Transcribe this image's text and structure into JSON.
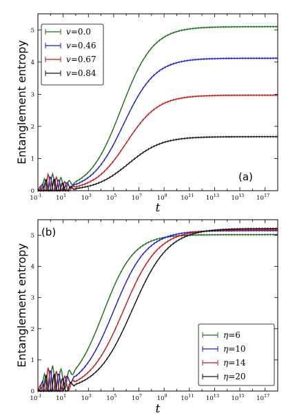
{
  "chart_data": [
    {
      "type": "line",
      "panel_label": "(a)",
      "xlabel": "t",
      "ylabel": "Entanglement entropy",
      "xscale": "log",
      "xlim": [
        0.1,
        1e+18
      ],
      "ylim": [
        0,
        5.5
      ],
      "xticks": [
        {
          "base": "10",
          "exp": "-1"
        },
        {
          "base": "10",
          "exp": "1"
        },
        {
          "base": "10",
          "exp": "3"
        },
        {
          "base": "10",
          "exp": "5"
        },
        {
          "base": "10",
          "exp": "7"
        },
        {
          "base": "10",
          "exp": "9"
        },
        {
          "base": "10",
          "exp": "11"
        },
        {
          "base": "10",
          "exp": "13"
        },
        {
          "base": "10",
          "exp": "15"
        },
        {
          "base": "10",
          "exp": "17"
        }
      ],
      "yticks": [
        "0",
        "1",
        "2",
        "3",
        "4",
        "5"
      ],
      "legend_position": "top-left",
      "series": [
        {
          "name": "v=0.0",
          "color": "#1a6e1a",
          "saturation": 5.1,
          "t_half": 400000.0,
          "width": 2.3
        },
        {
          "name": "v=0.46",
          "color": "#1a1ad6",
          "saturation": 4.12,
          "t_half": 600000.0,
          "width": 2.3
        },
        {
          "name": "v=0.67",
          "color": "#c81414",
          "saturation": 2.97,
          "t_half": 1000000.0,
          "width": 2.3
        },
        {
          "name": "v=0.84",
          "color": "#111111",
          "saturation": 1.68,
          "t_half": 1500000.0,
          "width": 2.4
        }
      ]
    },
    {
      "type": "line",
      "panel_label": "(b)",
      "xlabel": "t",
      "ylabel": "Entanglement entropy",
      "xscale": "log",
      "xlim": [
        0.1,
        1e+18
      ],
      "ylim": [
        0,
        5.5
      ],
      "xticks": [
        {
          "base": "10",
          "exp": "-1"
        },
        {
          "base": "10",
          "exp": "1"
        },
        {
          "base": "10",
          "exp": "3"
        },
        {
          "base": "10",
          "exp": "5"
        },
        {
          "base": "10",
          "exp": "7"
        },
        {
          "base": "10",
          "exp": "9"
        },
        {
          "base": "10",
          "exp": "11"
        },
        {
          "base": "10",
          "exp": "13"
        },
        {
          "base": "10",
          "exp": "15"
        },
        {
          "base": "10",
          "exp": "17"
        }
      ],
      "yticks": [
        "0",
        "1",
        "2",
        "3",
        "4",
        "5"
      ],
      "legend_position": "bottom-right",
      "series": [
        {
          "name": "η=6",
          "color": "#1a6e1a",
          "saturation": 5.02,
          "t_half": 15000.0,
          "width": 2.2
        },
        {
          "name": "η=10",
          "color": "#1a1ad6",
          "saturation": 5.15,
          "t_half": 100000.0,
          "width": 2.4
        },
        {
          "name": "η=14",
          "color": "#c81414",
          "saturation": 5.18,
          "t_half": 600000.0,
          "width": 2.5
        },
        {
          "name": "η=20",
          "color": "#111111",
          "saturation": 5.22,
          "t_half": 3000000.0,
          "width": 2.6
        }
      ]
    }
  ],
  "legends": {
    "a": [
      {
        "var": "v",
        "value": "0.0"
      },
      {
        "var": "v",
        "value": "0.46"
      },
      {
        "var": "v",
        "value": "0.67"
      },
      {
        "var": "v",
        "value": "0.84"
      }
    ],
    "b": [
      {
        "var": "η",
        "value": "6"
      },
      {
        "var": "η",
        "value": "10"
      },
      {
        "var": "η",
        "value": "14"
      },
      {
        "var": "η",
        "value": "20"
      }
    ]
  }
}
